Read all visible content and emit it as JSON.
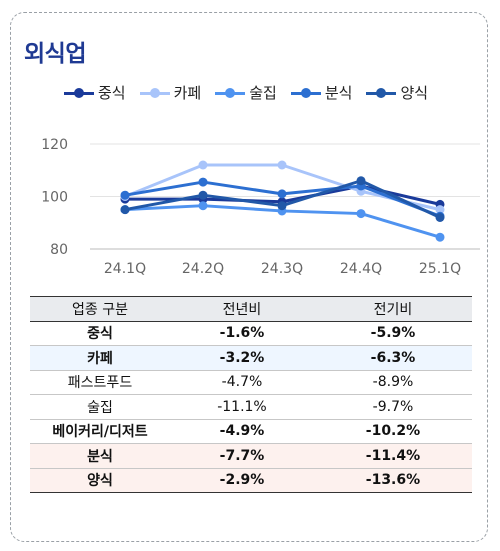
{
  "title": "외식업",
  "colors": {
    "title": "#1f3a93",
    "series": [
      "#1a3a9a",
      "#a8c4fa",
      "#4f93f0",
      "#2c6fd1",
      "#2158a8"
    ]
  },
  "chart_data": {
    "type": "line",
    "x": [
      "24.1Q",
      "24.2Q",
      "24.3Q",
      "24.4Q",
      "25.1Q"
    ],
    "yticks": [
      80,
      100,
      120
    ],
    "ylim": [
      80,
      120
    ],
    "grid": true,
    "legend_position": "top",
    "series": [
      {
        "name": "중식",
        "values": [
          99,
          99,
          98,
          104,
          97
        ]
      },
      {
        "name": "카페",
        "values": [
          100,
          112,
          112,
          102,
          95
        ]
      },
      {
        "name": "술집",
        "values": [
          95,
          96.5,
          94.5,
          93.5,
          84.5
        ]
      },
      {
        "name": "분식",
        "values": [
          100.5,
          105.5,
          101,
          104,
          92.5
        ]
      },
      {
        "name": "양식",
        "values": [
          95,
          100.5,
          96.5,
          106,
          92
        ]
      }
    ]
  },
  "table": {
    "headers": [
      "업종 구분",
      "전년비",
      "전기비"
    ],
    "rows": [
      {
        "name": "중식",
        "yoy": "-1.6%",
        "qoq": "-5.9%",
        "style": "bold"
      },
      {
        "name": "카페",
        "yoy": "-3.2%",
        "qoq": "-6.3%",
        "style": "bold hl-blue"
      },
      {
        "name": "패스트푸드",
        "yoy": "-4.7%",
        "qoq": "-8.9%",
        "style": ""
      },
      {
        "name": "술집",
        "yoy": "-11.1%",
        "qoq": "-9.7%",
        "style": ""
      },
      {
        "name": "베이커리/디저트",
        "yoy": "-4.9%",
        "qoq": "-10.2%",
        "style": "bold"
      },
      {
        "name": "분식",
        "yoy": "-7.7%",
        "qoq": "-11.4%",
        "style": "bold hl-pink"
      },
      {
        "name": "양식",
        "yoy": "-2.9%",
        "qoq": "-13.6%",
        "style": "bold hl-pink"
      }
    ]
  }
}
